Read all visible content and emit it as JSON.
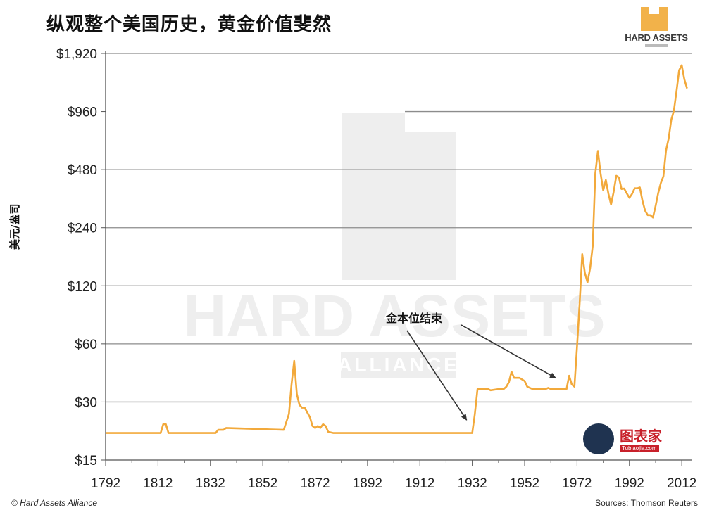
{
  "title": "纵观整个美国历史，黄金价值斐然",
  "logo": {
    "text": "HARD ASSETS"
  },
  "footer": {
    "left": "© Hard Assets Alliance",
    "right": "Sources: Thomson Reuters"
  },
  "watermark": {
    "brand": "图表家",
    "url": "Tubiaojia.com"
  },
  "bg_watermark": {
    "line1": "HARD ASSETS",
    "line2": "ALLIANCE"
  },
  "chart_data": {
    "type": "line",
    "title": "纵观整个美国历史，黄金价值斐然",
    "xlabel": "",
    "ylabel": "美元/盎司",
    "y_scale": "log",
    "xlim": [
      1792,
      2016
    ],
    "ylim": [
      15,
      1920
    ],
    "x_ticks": [
      1792,
      1812,
      1832,
      1852,
      1872,
      1892,
      1912,
      1932,
      1952,
      1972,
      1992,
      2012
    ],
    "y_ticks": [
      15,
      30,
      60,
      120,
      240,
      480,
      960,
      1920
    ],
    "y_tick_labels": [
      "$15",
      "$30",
      "$60",
      "$120",
      "$240",
      "$480",
      "$960",
      "$1,920"
    ],
    "grid": true,
    "line_color": "#f2a93b",
    "annotation": {
      "text": "金本位结束",
      "arrow_targets": [
        {
          "x": 1932,
          "y": 23
        },
        {
          "x": 1966,
          "y": 38
        }
      ]
    },
    "series": [
      {
        "x": [
          1792,
          1813,
          1814,
          1815,
          1816,
          1834,
          1835,
          1837,
          1838,
          1860,
          1862,
          1863,
          1864,
          1865,
          1866,
          1867,
          1868,
          1870,
          1871,
          1872,
          1873,
          1874,
          1875,
          1876,
          1877,
          1879,
          1900,
          1930,
          1932,
          1933,
          1934,
          1935,
          1938,
          1939,
          1942,
          1944,
          1945,
          1946,
          1947,
          1948,
          1950,
          1952,
          1953,
          1955,
          1960,
          1961,
          1962,
          1964,
          1968,
          1969,
          1970,
          1971,
          1972,
          1973,
          1974,
          1975,
          1976,
          1977,
          1978,
          1979,
          1980,
          1981,
          1982,
          1983,
          1984,
          1985,
          1986,
          1987,
          1988,
          1989,
          1990,
          1991,
          1992,
          1993,
          1994,
          1995,
          1996,
          1997,
          1998,
          1999,
          2000,
          2001,
          2002,
          2003,
          2004,
          2005,
          2006,
          2007,
          2008,
          2009,
          2010,
          2011,
          2012,
          2013,
          2014
        ],
        "y": [
          20.7,
          20.7,
          23,
          23,
          20.7,
          20.7,
          21.5,
          21.5,
          22,
          21.5,
          26,
          37,
          49,
          33,
          29,
          28,
          28,
          25,
          22.5,
          22,
          22.5,
          22,
          23,
          22.5,
          21,
          20.7,
          20.7,
          20.7,
          20.7,
          26,
          35,
          35,
          35,
          34.5,
          35,
          35,
          36,
          38,
          43,
          40,
          40,
          38.5,
          36,
          35,
          35,
          35.5,
          35,
          35,
          35,
          41,
          37,
          36,
          58,
          97,
          175,
          140,
          125,
          148,
          193,
          460,
          600,
          460,
          375,
          424,
          360,
          317,
          368,
          446,
          437,
          381,
          383,
          362,
          343,
          359,
          384,
          384,
          388,
          331,
          294,
          279,
          279,
          271,
          310,
          363,
          409,
          444,
          604,
          695,
          872,
          972,
          1225,
          1571,
          1669,
          1411,
          1266
        ]
      }
    ]
  }
}
